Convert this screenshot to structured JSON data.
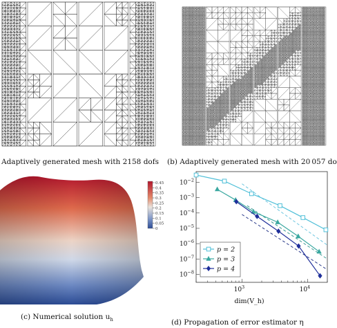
{
  "captions": {
    "a": "Adaptively generated mesh with 2158 dofs",
    "b": "(b) Adaptively generated mesh with 20 057 do",
    "c": "(c) Numerical solution u",
    "c_sub": "h",
    "d": "(d) Propagation of error estimator η"
  },
  "colorbar": {
    "ticks": [
      "0.45",
      "0.4",
      "0.35",
      "0.3",
      "0.25",
      "0.2",
      "0.15",
      "0.1",
      "0.05",
      "0"
    ],
    "colors": {
      "high": "#b3172d",
      "mid": "#e9e3dd",
      "low": "#2c4c95"
    }
  },
  "chart_data": {
    "type": "line",
    "xlabel": "dim(V_h)",
    "x_scale": "log",
    "y_scale": "log",
    "xlim": [
      200,
      20000
    ],
    "ylim": [
      3e-09,
      0.05
    ],
    "x_ticks": [
      "10^3",
      "10^4"
    ],
    "y_ticks": [
      "10^-2",
      "10^-3",
      "10^-4",
      "10^-5",
      "10^-6",
      "10^-7",
      "10^-8"
    ],
    "legend_position": "bottom-left",
    "series": [
      {
        "name": "p = 2",
        "marker": "square",
        "color": "#4fbfd8",
        "x": [
          200,
          540,
          1400,
          3800,
          8500,
          19000
        ],
        "y": [
          0.03,
          0.012,
          0.0018,
          0.0003,
          5e-05,
          8e-06
        ]
      },
      {
        "name": "p = 3",
        "marker": "triangle",
        "color": "#3aa8a0",
        "x": [
          420,
          800,
          1500,
          3500,
          7200,
          15000
        ],
        "y": [
          0.0035,
          0.0007,
          0.00012,
          2.5e-05,
          3e-06,
          3e-07
        ]
      },
      {
        "name": "p = 4",
        "marker": "diamond",
        "color": "#1f2f9a",
        "x": [
          820,
          1700,
          3600,
          7300,
          15500
        ],
        "y": [
          0.00055,
          6e-05,
          6.5e-06,
          7e-07,
          8e-09
        ]
      }
    ],
    "reference_lines": [
      {
        "color": "#6fc6e0",
        "x": [
          1000,
          20000
        ],
        "y": [
          0.008,
          8e-07
        ]
      },
      {
        "color": "#3a9a92",
        "x": [
          1200,
          20000
        ],
        "y": [
          0.0003,
          1e-07
        ]
      },
      {
        "color": "#2a3a8a",
        "x": [
          1000,
          20000
        ],
        "y": [
          8e-05,
          2e-08
        ]
      }
    ]
  }
}
